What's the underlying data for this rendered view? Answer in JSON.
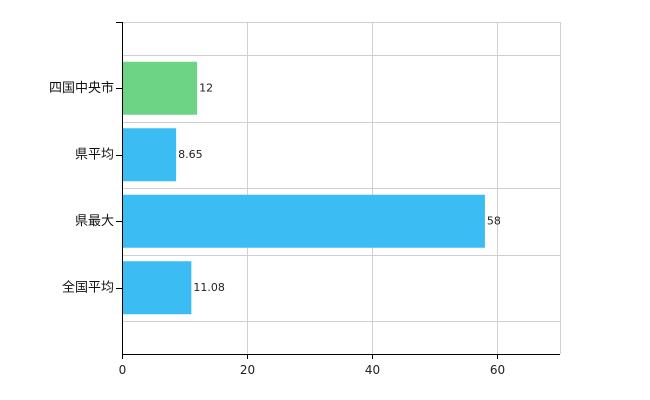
{
  "chart_data": {
    "type": "bar",
    "orientation": "horizontal",
    "categories": [
      "四国中央市",
      "県平均",
      "県最大",
      "全国平均"
    ],
    "values": [
      12,
      8.65,
      58,
      11.08
    ],
    "value_labels": [
      "12",
      "8.65",
      "58",
      "11.08"
    ],
    "bar_colors": [
      "#6dd486",
      "#3bbdf4",
      "#3bbdf4",
      "#3bbdf4"
    ],
    "title": "",
    "xlabel": "",
    "ylabel": "",
    "xlim": [
      0,
      70
    ],
    "xticks": [
      0,
      20,
      40,
      60
    ],
    "xtick_labels": [
      "0",
      "20",
      "40",
      "60"
    ],
    "grid": true,
    "legend": "none"
  },
  "colors": {
    "highlight": "#6dd486",
    "default": "#3bbdf4",
    "grid": "#d0d0d0",
    "axis": "#000000"
  }
}
